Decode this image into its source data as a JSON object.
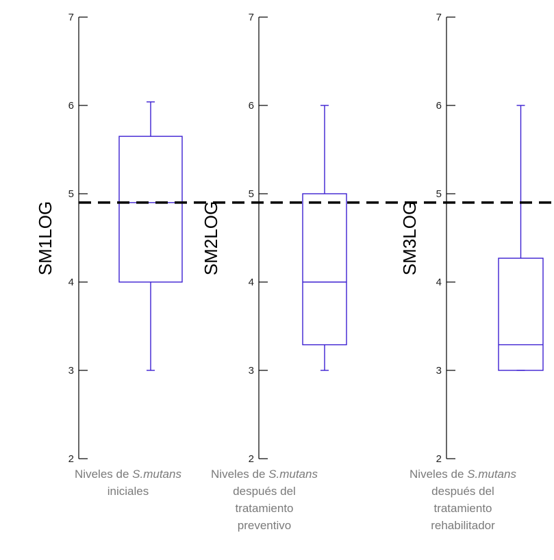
{
  "chart_data": {
    "type": "box",
    "ylim": [
      2,
      7
    ],
    "yticks": [
      2,
      3,
      4,
      5,
      6,
      7
    ],
    "reference_line": {
      "value": 4.9,
      "style": "dashed",
      "color": "#000000"
    },
    "box_color": "#3b1fd1",
    "panels": [
      {
        "ylabel": "SM1LOG",
        "min": 3.0,
        "q1": 4.0,
        "median": 4.9,
        "q3": 5.65,
        "max": 6.04,
        "caption": {
          "prefix": "Niveles de ",
          "italic": "S.mutans",
          "rest": [
            "iniciales"
          ]
        }
      },
      {
        "ylabel": "SM2LOG",
        "min": 3.0,
        "q1": 3.29,
        "median": 4.0,
        "q3": 5.0,
        "max": 6.0,
        "caption": {
          "prefix": "Niveles de ",
          "italic": "S.mutans",
          "rest": [
            "después del",
            "tratamiento",
            "preventivo"
          ]
        }
      },
      {
        "ylabel": "SM3LOG",
        "min": 3.0,
        "q1": 3.0,
        "median": 3.29,
        "q3": 4.27,
        "max": 6.0,
        "caption": {
          "prefix": "Niveles de ",
          "italic": "S.mutans",
          "rest": [
            "después del",
            "tratamiento",
            "rehabilitador"
          ]
        }
      }
    ]
  }
}
